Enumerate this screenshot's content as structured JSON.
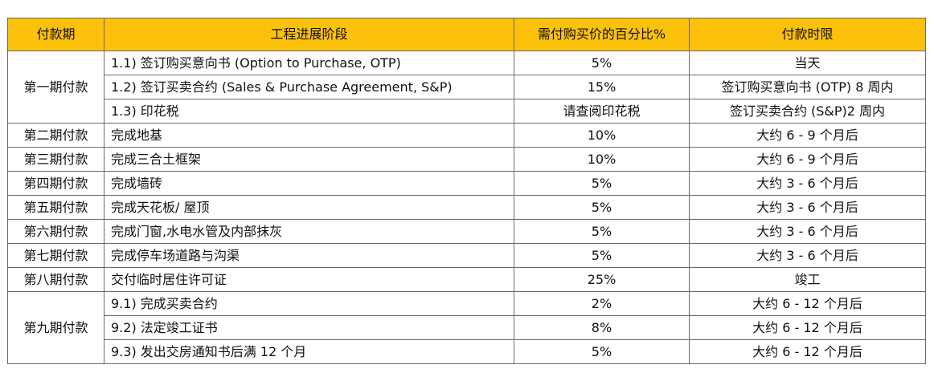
{
  "colors": {
    "header_bg": "#FBC10B",
    "border": "#6a6a6a"
  },
  "table": {
    "headers": [
      "付款期",
      "工程进展阶段",
      "需付购买价的百分比%",
      "付款时限"
    ],
    "groups": [
      {
        "period": "第一期付款",
        "rows": [
          {
            "stage": "1.1) 签订购买意向书 (Option to Purchase, OTP)",
            "percent": "5%",
            "deadline": "当天"
          },
          {
            "stage": "1.2) 签订买卖合约 (Sales & Purchase Agreement, S&P)",
            "percent": "15%",
            "deadline": "签订购买意向书 (OTP) 8 周内"
          },
          {
            "stage": "1.3) 印花税",
            "percent": "请查阅印花税",
            "deadline": "签订买卖合约 (S&P)2 周内"
          }
        ]
      },
      {
        "period": "第二期付款",
        "rows": [
          {
            "stage": "完成地基",
            "percent": "10%",
            "deadline": "大约 6 - 9 个月后"
          }
        ]
      },
      {
        "period": "第三期付款",
        "rows": [
          {
            "stage": "完成三合土框架",
            "percent": "10%",
            "deadline": "大约 6 - 9 个月后"
          }
        ]
      },
      {
        "period": "第四期付款",
        "rows": [
          {
            "stage": "完成墙砖",
            "percent": "5%",
            "deadline": "大约 3 - 6 个月后"
          }
        ]
      },
      {
        "period": "第五期付款",
        "rows": [
          {
            "stage": "完成天花板/ 屋顶",
            "percent": "5%",
            "deadline": "大约 3 - 6 个月后"
          }
        ]
      },
      {
        "period": "第六期付款",
        "rows": [
          {
            "stage": "完成门窗,水电水管及内部抹灰",
            "percent": "5%",
            "deadline": "大约 3 - 6 个月后"
          }
        ]
      },
      {
        "period": "第七期付款",
        "rows": [
          {
            "stage": "完成停车场道路与沟渠",
            "percent": "5%",
            "deadline": "大约 3 - 6 个月后"
          }
        ]
      },
      {
        "period": "第八期付款",
        "rows": [
          {
            "stage": "交付临时居住许可证",
            "percent": "25%",
            "deadline": "竣工"
          }
        ]
      },
      {
        "period": "第九期付款",
        "rows": [
          {
            "stage": "9.1) 完成买卖合约",
            "percent": "2%",
            "deadline": "大约 6 - 12 个月后"
          },
          {
            "stage": "9.2) 法定竣工证书",
            "percent": "8%",
            "deadline": "大约 6 - 12 个月后"
          },
          {
            "stage": "9.3) 发出交房通知书后满 12 个月",
            "percent": "5%",
            "deadline": "大约 6 - 12 个月后"
          }
        ]
      }
    ]
  }
}
